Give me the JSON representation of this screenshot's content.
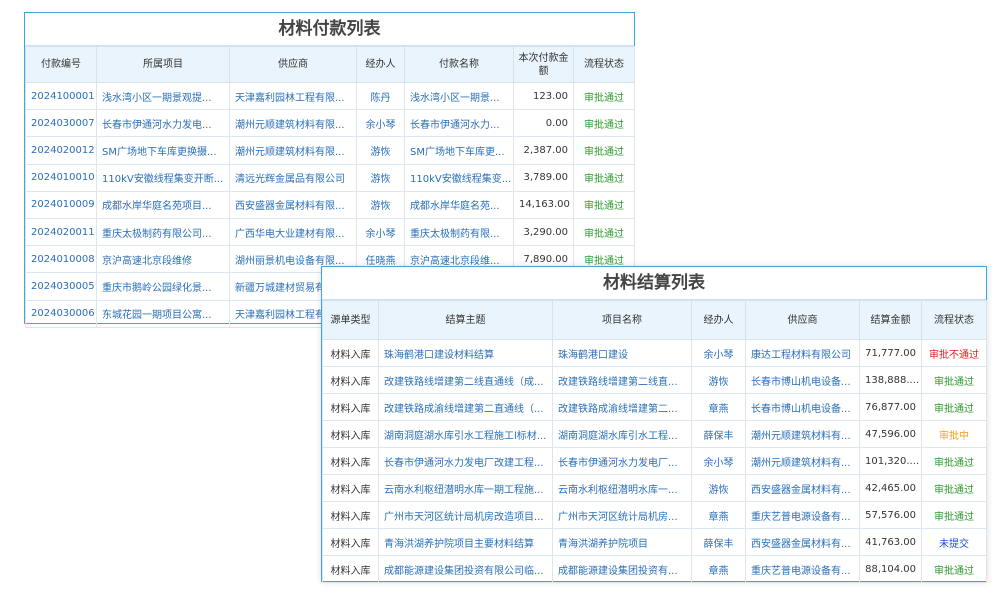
{
  "payment_table": {
    "title": "材料付款列表",
    "headers": [
      "付款编号",
      "所属项目",
      "供应商",
      "经办人",
      "付款名称",
      "本次付款金额",
      "流程状态"
    ],
    "rows": [
      [
        "2024100001",
        "浅水湾小区一期景观提...",
        "天津嘉利园林工程有限...",
        "陈丹",
        "浅水湾小区一期景...",
        "123.00",
        "审批通过"
      ],
      [
        "2024030007",
        "长春市伊通河水力发电...",
        "潮州元顺建筑材料有限...",
        "余小琴",
        "长春市伊通河水力...",
        "0.00",
        "审批通过"
      ],
      [
        "2024020012",
        "SM广场地下车库更换摄...",
        "潮州元顺建筑材料有限...",
        "游恢",
        "SM广场地下车库更...",
        "2,387.00",
        "审批通过"
      ],
      [
        "2024010010",
        "110kV安徽线程集变开断...",
        "清远光辉金属品有限公司",
        "游恢",
        "110kV安徽线程集变...",
        "3,789.00",
        "审批通过"
      ],
      [
        "2024010009",
        "成都水岸华庭名苑项目...",
        "西安盛器金属材料有限...",
        "游恢",
        "成都水岸华庭名苑...",
        "14,163.00",
        "审批通过"
      ],
      [
        "2024020011",
        "重庆太极制药有限公司...",
        "广西华电大业建材有限...",
        "余小琴",
        "重庆太极制药有限...",
        "3,290.00",
        "审批通过"
      ],
      [
        "2024010008",
        "京沪高速北京段维修",
        "湖州丽景机电设备有限...",
        "任晓燕",
        "京沪高速北京段维...",
        "7,890.00",
        "审批通过"
      ],
      [
        "2024030005",
        "重庆市鹅岭公园绿化景...",
        "新疆万城建材贸易有"
      ],
      [
        "2024030006",
        "东城花园一期项目公寓...",
        "天津嘉利园林工程有限"
      ]
    ]
  },
  "settlement_table": {
    "title": "材料结算列表",
    "headers": [
      "源单类型",
      "结算主题",
      "项目名称",
      "经办人",
      "供应商",
      "结算金额",
      "流程状态"
    ],
    "rows": [
      [
        "材料入库",
        "珠海鹤港口建设材料结算",
        "珠海鹤港口建设",
        "余小琴",
        "康达工程材料有限公司",
        "71,777.00",
        "审批不通过"
      ],
      [
        "材料入库",
        "改建铁路线增建第二线直通线（成...",
        "改建铁路线增建第二线直...",
        "游恢",
        "长春市博山机电设备...",
        "138,888....",
        "审批通过"
      ],
      [
        "材料入库",
        "改建铁路成渝线增建第二直通线（...",
        "改建铁路成渝线增建第二...",
        "章燕",
        "长春市博山机电设备...",
        "76,877.00",
        "审批通过"
      ],
      [
        "材料入库",
        "湖南洞庭湖水库引水工程施工l标材...",
        "湖南洞庭湖水库引水工程...",
        "薛保丰",
        "潮州元顺建筑材料有...",
        "47,596.00",
        "审批中"
      ],
      [
        "材料入库",
        "长春市伊通河水力发电厂改建工程...",
        "长春市伊通河水力发电厂...",
        "余小琴",
        "潮州元顺建筑材料有...",
        "101,320....",
        "审批通过"
      ],
      [
        "材料入库",
        "云南水利枢纽潜明水库一期工程施...",
        "云南水利枢纽潜明水库一...",
        "游恢",
        "西安盛器金属材料有...",
        "42,465.00",
        "审批通过"
      ],
      [
        "材料入库",
        "广州市天河区统计局机房改造项目...",
        "广州市天河区统计局机房...",
        "章燕",
        "重庆艺普电源设备有...",
        "57,576.00",
        "审批通过"
      ],
      [
        "材料入库",
        "青海洪湖养护院项目主要材料结算",
        "青海洪湖养护院项目",
        "薛保丰",
        "西安盛器金属材料有...",
        "41,763.00",
        "未提交"
      ],
      [
        "材料入库",
        "成都能源建设集团投资有限公司临...",
        "成都能源建设集团投资有...",
        "章燕",
        "重庆艺普电源设备有...",
        "88,104.00",
        "审批通过"
      ]
    ],
    "status_colors": [
      "#e02020",
      "#2e9a2e",
      "#2e9a2e",
      "#f0a020",
      "#2e9a2e",
      "#2e9a2e",
      "#2e9a2e",
      "#1a4fd0",
      "#2e9a2e"
    ]
  }
}
